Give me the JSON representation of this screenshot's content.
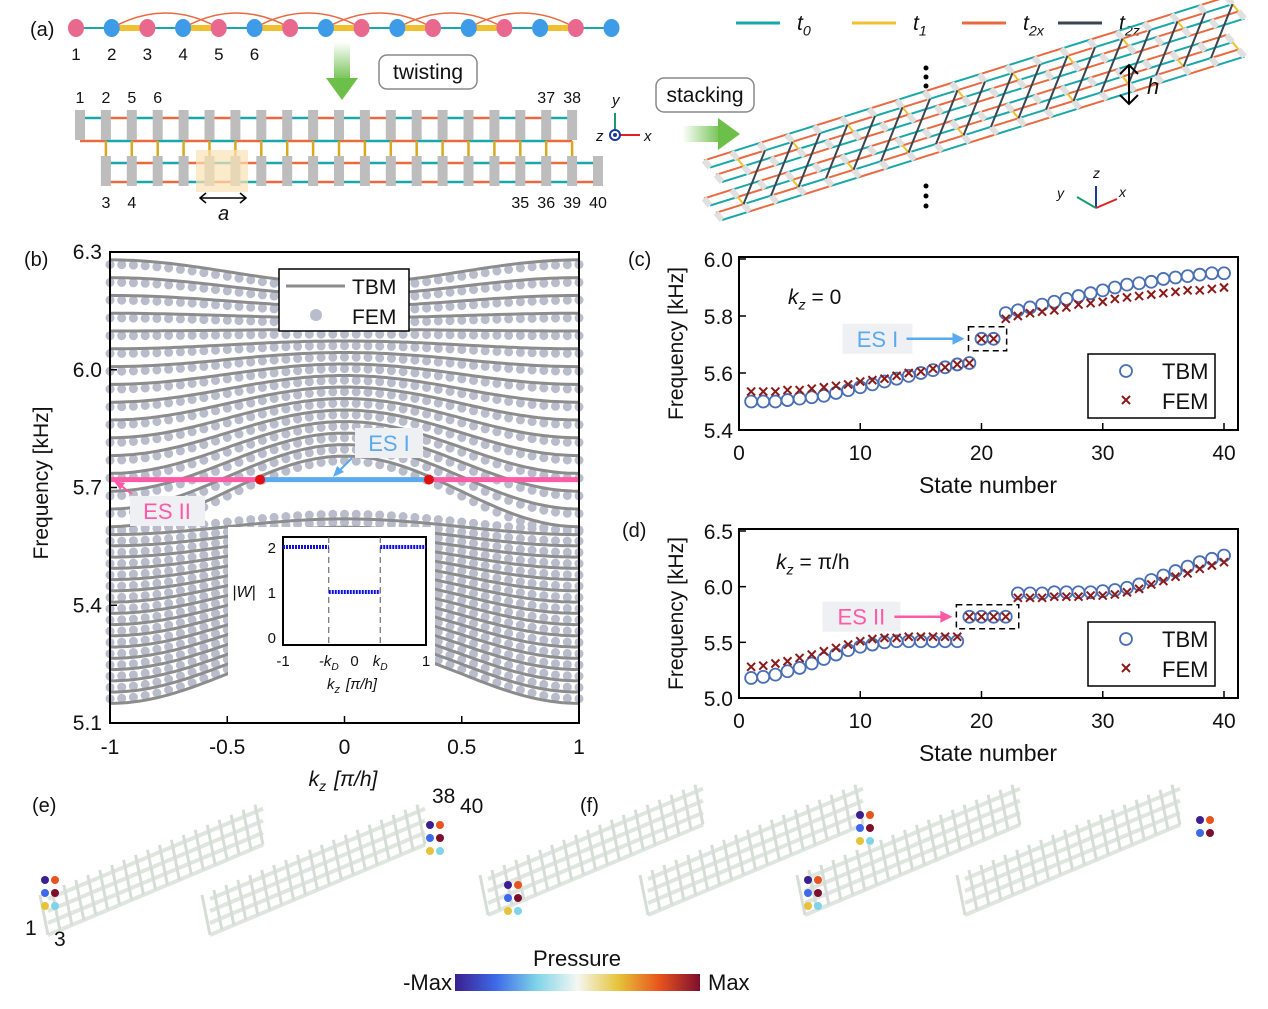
{
  "panel_labels": {
    "a": "(a)",
    "b": "(b)",
    "c": "(c)",
    "d": "(d)",
    "e": "(e)",
    "f": "(f)"
  },
  "panel_a": {
    "chain_labels": [
      "1",
      "2",
      "3",
      "4",
      "5",
      "6"
    ],
    "twisting_label": "twisting",
    "stacking_label": "stacking",
    "ladder_top_left_labels": [
      "1",
      "2",
      "5",
      "6"
    ],
    "ladder_top_right_labels": [
      "37",
      "38"
    ],
    "ladder_bottom_left_labels": [
      "3",
      "4"
    ],
    "ladder_bottom_right_labels": [
      "35",
      "36",
      "39",
      "40"
    ],
    "lattice_constant_label": "a",
    "height_label": "h",
    "axes2d": {
      "y": "y",
      "z": "z",
      "x": "x"
    },
    "axes3d": {
      "z": "z",
      "y": "y",
      "x": "x"
    },
    "legend": [
      {
        "base": "t",
        "sub": "0",
        "color": "#1aa7a7"
      },
      {
        "base": "t",
        "sub": "1",
        "color": "#f0c030"
      },
      {
        "base": "t",
        "sub": "2x",
        "color": "#e86a40"
      },
      {
        "base": "t",
        "sub": "2z",
        "color": "#3a4550"
      }
    ],
    "site_colors": {
      "A": "#e8688e",
      "B": "#3d9be8"
    }
  },
  "chart_data": [
    {
      "id": "b",
      "type": "line",
      "xlabel": {
        "base": "k",
        "sub": "z",
        "unit": "[π/h]"
      },
      "ylabel": "Frequency [kHz]",
      "xlim": [
        -1,
        1
      ],
      "ylim": [
        5.1,
        6.3
      ],
      "xticks": [
        "-1",
        "-0.5",
        "0",
        "0.5",
        "1"
      ],
      "xtick_values": [
        -1,
        -0.5,
        0,
        0.5,
        1
      ],
      "yticks": [
        "5.1",
        "5.4",
        "5.7",
        "6.0",
        "6.3"
      ],
      "ytick_values": [
        5.1,
        5.4,
        5.7,
        6.0,
        6.3
      ],
      "legend": {
        "placement": "top-center",
        "entries": [
          "TBM",
          "FEM"
        ]
      },
      "colors": {
        "TBM": "#8c8c8c",
        "FEM": "#b9bccb",
        "ES_I": "#5aaaf0",
        "ES_II": "#ff5aa5",
        "dirac": "#e01010"
      },
      "upper_bands": {
        "count": 16,
        "freq_at_k0": [
          5.78,
          6.22
        ],
        "freq_at_k1": [
          5.6,
          6.28
        ]
      },
      "lower_bands": {
        "count": 16,
        "freq_at_k0": [
          5.3,
          5.62
        ],
        "freq_at_k1": [
          5.15,
          5.58
        ]
      },
      "edge_state_frequency": 5.72,
      "dirac_points_kz": [
        -0.36,
        0.36
      ],
      "annotations": {
        "es1": "ES I",
        "es2": "ES II"
      },
      "inset": {
        "type": "line",
        "ylabel": "|W|",
        "xlabel": {
          "base": "k",
          "sub": "z",
          "unit": "[π/h]"
        },
        "xticks": [
          "-1",
          "-kD",
          "0",
          "kD",
          "1"
        ],
        "xtick_labels": [
          {
            "text": "-1"
          },
          {
            "base": "-k",
            "sub": "D"
          },
          {
            "text": "0"
          },
          {
            "base": "k",
            "sub": "D"
          },
          {
            "text": "1"
          }
        ],
        "yticks": [
          "0",
          "1",
          "2"
        ],
        "ylim": [
          0,
          2.3
        ],
        "kD": 0.36,
        "segments": [
          {
            "x": [
              -1,
              -0.36
            ],
            "y": 2
          },
          {
            "x": [
              -0.36,
              0.36
            ],
            "y": 1
          },
          {
            "x": [
              0.36,
              1
            ],
            "y": 2
          }
        ],
        "color": "#1010e0"
      }
    },
    {
      "id": "c",
      "type": "scatter",
      "annotation": {
        "base": "k",
        "sub": "z",
        "rest": " = 0"
      },
      "es_label": "ES I",
      "es_states": [
        20,
        21
      ],
      "xlabel": "State number",
      "ylabel": "Frequency [kHz]",
      "xlim": [
        0,
        40
      ],
      "ylim": [
        5.4,
        6.0
      ],
      "xticks": [
        "0",
        "10",
        "20",
        "30",
        "40"
      ],
      "yticks": [
        "5.4",
        "5.6",
        "5.8",
        "6.0"
      ],
      "legend": {
        "placement": "bottom-right",
        "entries": [
          "TBM",
          "FEM"
        ]
      },
      "x": [
        1,
        2,
        3,
        4,
        5,
        6,
        7,
        8,
        9,
        10,
        11,
        12,
        13,
        14,
        15,
        16,
        17,
        18,
        19,
        20,
        21,
        22,
        23,
        24,
        25,
        26,
        27,
        28,
        29,
        30,
        31,
        32,
        33,
        34,
        35,
        36,
        37,
        38,
        39,
        40
      ],
      "series": [
        {
          "name": "TBM",
          "marker": "circle",
          "color": "#4a6fb5",
          "values": [
            5.5,
            5.5,
            5.5,
            5.505,
            5.51,
            5.515,
            5.52,
            5.53,
            5.54,
            5.55,
            5.56,
            5.57,
            5.58,
            5.59,
            5.6,
            5.61,
            5.62,
            5.63,
            5.635,
            5.72,
            5.72,
            5.81,
            5.82,
            5.83,
            5.84,
            5.85,
            5.86,
            5.87,
            5.88,
            5.89,
            5.9,
            5.91,
            5.915,
            5.92,
            5.93,
            5.935,
            5.94,
            5.945,
            5.95,
            5.95
          ]
        },
        {
          "name": "FEM",
          "marker": "x",
          "color": "#8b1a1a",
          "values": [
            5.535,
            5.535,
            5.535,
            5.54,
            5.54,
            5.545,
            5.55,
            5.555,
            5.56,
            5.57,
            5.575,
            5.58,
            5.59,
            5.6,
            5.605,
            5.615,
            5.62,
            5.63,
            5.635,
            5.72,
            5.72,
            5.79,
            5.8,
            5.81,
            5.815,
            5.82,
            5.83,
            5.84,
            5.845,
            5.85,
            5.86,
            5.865,
            5.87,
            5.875,
            5.88,
            5.885,
            5.89,
            5.89,
            5.895,
            5.9
          ]
        }
      ]
    },
    {
      "id": "d",
      "type": "scatter",
      "annotation": {
        "base": "k",
        "sub": "z",
        "rest": " = π/h"
      },
      "es_label": "ES II",
      "es_states": [
        19,
        20,
        21,
        22
      ],
      "xlabel": "State number",
      "ylabel": "Frequency [kHz]",
      "xlim": [
        0,
        40
      ],
      "ylim": [
        5.0,
        6.5
      ],
      "xticks": [
        "0",
        "10",
        "20",
        "30",
        "40"
      ],
      "yticks": [
        "5.0",
        "5.5",
        "6.0",
        "6.5"
      ],
      "legend": {
        "placement": "bottom-right",
        "entries": [
          "TBM",
          "FEM"
        ]
      },
      "x": [
        1,
        2,
        3,
        4,
        5,
        6,
        7,
        8,
        9,
        10,
        11,
        12,
        13,
        14,
        15,
        16,
        17,
        18,
        19,
        20,
        21,
        22,
        23,
        24,
        25,
        26,
        27,
        28,
        29,
        30,
        31,
        32,
        33,
        34,
        35,
        36,
        37,
        38,
        39,
        40
      ],
      "series": [
        {
          "name": "TBM",
          "marker": "circle",
          "color": "#4a6fb5",
          "values": [
            5.18,
            5.19,
            5.21,
            5.24,
            5.27,
            5.31,
            5.35,
            5.39,
            5.43,
            5.46,
            5.48,
            5.5,
            5.51,
            5.51,
            5.51,
            5.51,
            5.51,
            5.51,
            5.73,
            5.73,
            5.73,
            5.73,
            5.94,
            5.94,
            5.94,
            5.95,
            5.95,
            5.95,
            5.95,
            5.96,
            5.97,
            5.99,
            6.02,
            6.06,
            6.1,
            6.14,
            6.18,
            6.22,
            6.25,
            6.28
          ]
        },
        {
          "name": "FEM",
          "marker": "x",
          "color": "#8b1a1a",
          "values": [
            5.28,
            5.29,
            5.31,
            5.33,
            5.36,
            5.39,
            5.42,
            5.45,
            5.48,
            5.51,
            5.53,
            5.54,
            5.54,
            5.55,
            5.55,
            5.55,
            5.55,
            5.55,
            5.73,
            5.73,
            5.73,
            5.73,
            5.9,
            5.9,
            5.9,
            5.91,
            5.91,
            5.91,
            5.92,
            5.92,
            5.93,
            5.95,
            5.98,
            6.02,
            6.05,
            6.09,
            6.12,
            6.16,
            6.19,
            6.22
          ]
        }
      ]
    }
  ],
  "panel_e": {
    "site_labels": [
      "1",
      "3",
      "38",
      "40"
    ]
  },
  "colorbar": {
    "title": "Pressure",
    "min_label": "-Max",
    "max_label": "Max",
    "colors": [
      "#3b1f8e",
      "#3d6ae8",
      "#7fd4e8",
      "#f4f7f2",
      "#e6c33a",
      "#e8541e",
      "#7d0f2e"
    ]
  }
}
